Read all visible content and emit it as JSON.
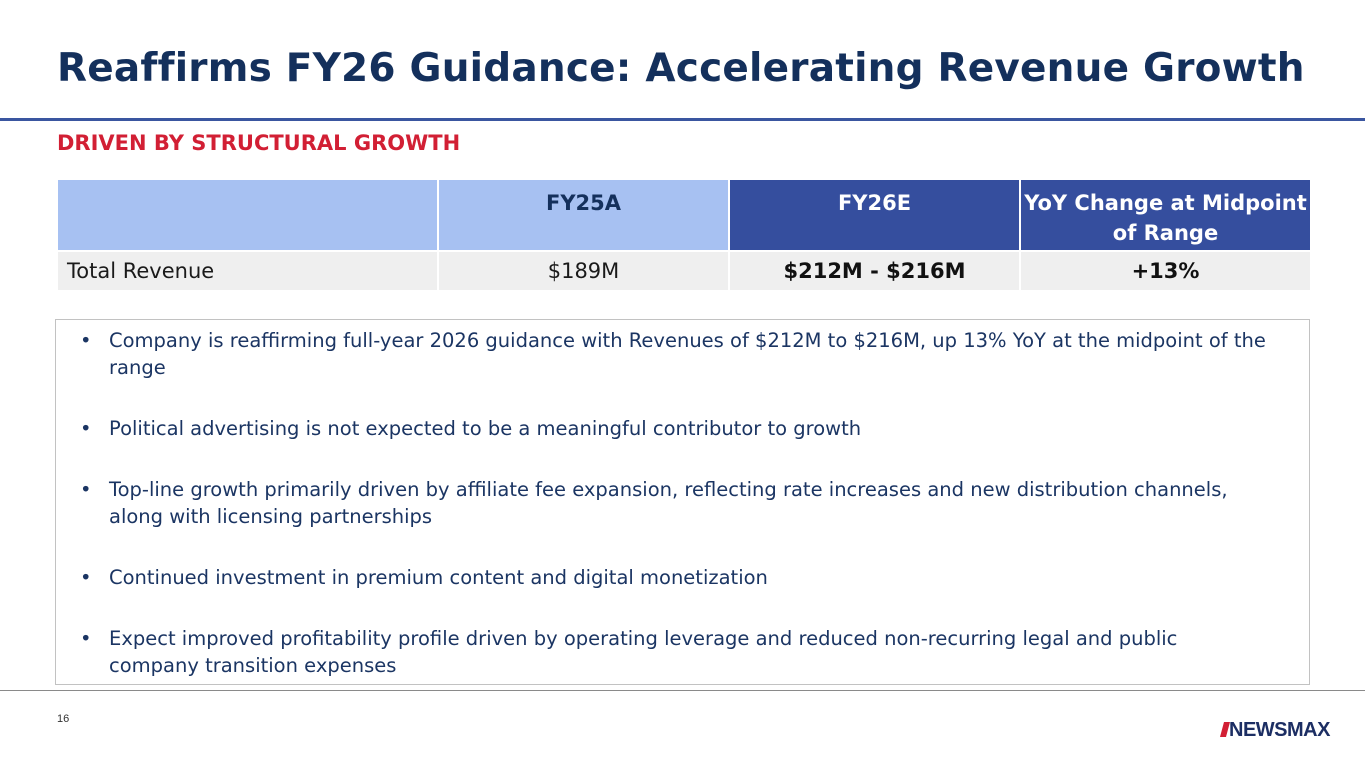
{
  "slide": {
    "title": "Reaffirms FY26 Guidance: Accelerating Revenue Growth",
    "subtitle": "DRIVEN BY STRUCTURAL GROWTH",
    "page_number": "16"
  },
  "table": {
    "headers": [
      "",
      "FY25A",
      "FY26E",
      "YoY Change at Midpoint of Range"
    ],
    "rows": [
      {
        "label": "Total Revenue",
        "fy25a": "$189M",
        "fy26e": "$212M - $216M",
        "yoy": "+13%"
      }
    ]
  },
  "bullets": [
    "Company is reaffirming full-year 2026 guidance with Revenues of $212M to $216M, up 13% YoY at the midpoint of the range",
    "Political advertising is not expected to be a meaningful contributor to growth",
    "Top-line growth primarily driven by affiliate fee expansion, reflecting rate increases and new distribution channels, along with licensing partnerships",
    "Continued investment in premium content and digital monetization",
    "Expect improved profitability profile driven by operating leverage and reduced non-recurring legal and public company transition expenses"
  ],
  "logo": {
    "text": "NEWSMAX"
  },
  "colors": {
    "title": "#14305c",
    "subtitle": "#d21f34",
    "header_light": "#a7c1f2",
    "header_dark": "#354e9e",
    "row_bg": "#efefef"
  }
}
